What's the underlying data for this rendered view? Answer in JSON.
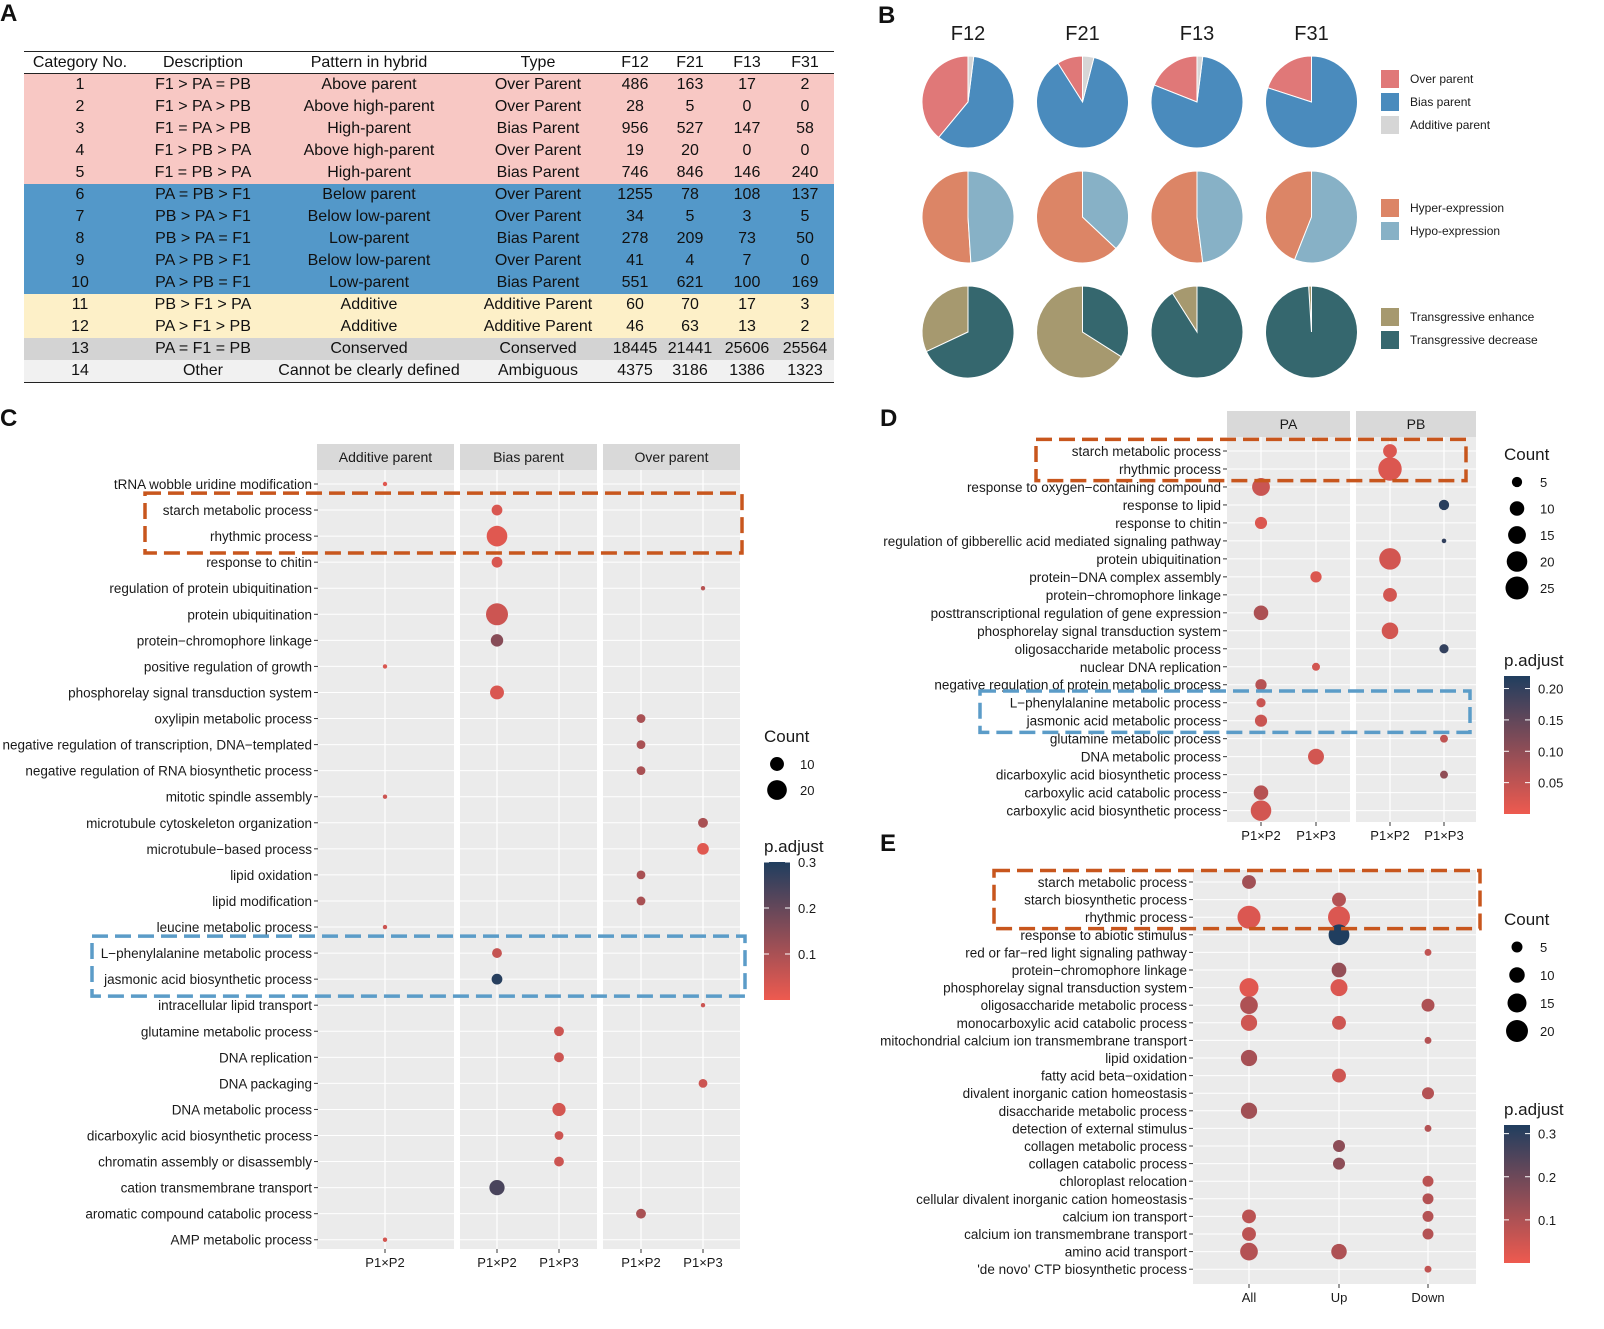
{
  "colors": {
    "over": "#e07878",
    "bias": "#4a8bbd",
    "additive": "#d6d6d6",
    "hyper": "#dc8566",
    "hypo": "#87b1c6",
    "tenhance": "#a6996f",
    "tdecrease": "#35676e",
    "grad_low": "#ee5a4f",
    "grad_high": "#203e5f",
    "panel_bg": "#ebebeb",
    "strip_bg": "#d9d9d9",
    "orange_box": "#c8561d",
    "blue_box": "#5b9cc8"
  },
  "panels": {
    "a": "A",
    "b": "B",
    "c": "C",
    "d": "D",
    "e": "E"
  },
  "table": {
    "headers": [
      "Category No.",
      "Description",
      "Pattern in hybrid",
      "Type",
      "F12",
      "F21",
      "F13",
      "F31"
    ],
    "rows": [
      {
        "g": "over",
        "cells": [
          "1",
          "F1 > PA = PB",
          "Above parent",
          "Over Parent",
          "486",
          "163",
          "17",
          "2"
        ]
      },
      {
        "g": "over",
        "cells": [
          "2",
          "F1 > PA > PB",
          "Above high-parent",
          "Over Parent",
          "28",
          "5",
          "0",
          "0"
        ]
      },
      {
        "g": "over",
        "cells": [
          "3",
          "F1 = PA > PB",
          "High-parent",
          "Bias Parent",
          "956",
          "527",
          "147",
          "58"
        ]
      },
      {
        "g": "over",
        "cells": [
          "4",
          "F1 > PB > PA",
          "Above high-parent",
          "Over Parent",
          "19",
          "20",
          "0",
          "0"
        ]
      },
      {
        "g": "over",
        "cells": [
          "5",
          "F1 = PB > PA",
          "High-parent",
          "Bias Parent",
          "746",
          "846",
          "146",
          "240"
        ]
      },
      {
        "g": "below",
        "cells": [
          "6",
          "PA = PB > F1",
          "Below parent",
          "Over Parent",
          "1255",
          "78",
          "108",
          "137"
        ]
      },
      {
        "g": "below",
        "cells": [
          "7",
          "PB > PA > F1",
          "Below low-parent",
          "Over Parent",
          "34",
          "5",
          "3",
          "5"
        ]
      },
      {
        "g": "below",
        "cells": [
          "8",
          "PB > PA = F1",
          "Low-parent",
          "Bias Parent",
          "278",
          "209",
          "73",
          "50"
        ]
      },
      {
        "g": "below",
        "cells": [
          "9",
          "PA > PB > F1",
          "Below low-parent",
          "Over Parent",
          "41",
          "4",
          "7",
          "0"
        ]
      },
      {
        "g": "below",
        "cells": [
          "10",
          "PA > PB = F1",
          "Low-parent",
          "Bias Parent",
          "551",
          "621",
          "100",
          "169"
        ]
      },
      {
        "g": "add",
        "cells": [
          "11",
          "PB > F1 > PA",
          "Additive",
          "Additive Parent",
          "60",
          "70",
          "17",
          "3"
        ]
      },
      {
        "g": "add",
        "cells": [
          "12",
          "PA > F1 > PB",
          "Additive",
          "Additive Parent",
          "46",
          "63",
          "13",
          "2"
        ]
      },
      {
        "g": "cons",
        "cells": [
          "13",
          "PA = F1 = PB",
          "Conserved",
          "Conserved",
          "18445",
          "21441",
          "25606",
          "25564"
        ]
      },
      {
        "g": "oth",
        "cells": [
          "14",
          "Other",
          "Cannot be clearly defined",
          "Ambiguous",
          "4375",
          "3186",
          "1386",
          "1323"
        ]
      }
    ]
  },
  "chart_data": [
    {
      "type": "pie",
      "panel": "B",
      "columns": [
        "F12",
        "F21",
        "F13",
        "F31"
      ],
      "rows": [
        {
          "legend": [
            {
              "label": "Over parent",
              "color": "over"
            },
            {
              "label": "Bias parent",
              "color": "bias"
            },
            {
              "label": "Additive parent",
              "color": "additive"
            }
          ],
          "slices": [
            [
              0.39,
              0.59,
              0.02
            ],
            [
              0.09,
              0.87,
              0.04
            ],
            [
              0.19,
              0.79,
              0.02
            ],
            [
              0.2,
              0.8,
              0.0
            ]
          ]
        },
        {
          "legend": [
            {
              "label": "Hyper-expression",
              "color": "hyper"
            },
            {
              "label": "Hypo-expression",
              "color": "hypo"
            }
          ],
          "slices": [
            [
              0.51,
              0.49
            ],
            [
              0.63,
              0.37
            ],
            [
              0.52,
              0.48
            ],
            [
              0.44,
              0.56
            ]
          ]
        },
        {
          "legend": [
            {
              "label": "Transgressive enhance",
              "color": "tenhance"
            },
            {
              "label": "Transgressive decrease",
              "color": "tdecrease"
            }
          ],
          "slices": [
            [
              0.32,
              0.68
            ],
            [
              0.66,
              0.34
            ],
            [
              0.09,
              0.91
            ],
            [
              0.01,
              0.99
            ]
          ]
        }
      ]
    },
    {
      "type": "scatter",
      "panel": "C",
      "facets": [
        {
          "label": "Additive parent",
          "x": [
            "P1×P2"
          ]
        },
        {
          "label": "Bias parent",
          "x": [
            "P1×P2",
            "P1×P3"
          ]
        },
        {
          "label": "Over parent",
          "x": [
            "P1×P2",
            "P1×P3"
          ]
        }
      ],
      "terms": [
        "tRNA wobble uridine modification",
        "starch metabolic process",
        "rhythmic process",
        "response to chitin",
        "regulation of protein ubiquitination",
        "protein ubiquitination",
        "protein−chromophore linkage",
        "positive regulation of growth",
        "phosphorelay signal transduction system",
        "oxylipin metabolic process",
        "negative regulation of transcription, DNA−templated",
        "negative regulation of RNA biosynthetic process",
        "mitotic spindle assembly",
        "microtubule cytoskeleton organization",
        "microtubule−based process",
        "lipid oxidation",
        "lipid modification",
        "leucine metabolic process",
        "L−phenylalanine metabolic process",
        "jasmonic acid biosynthetic process",
        "intracellular lipid transport",
        "glutamine metabolic process",
        "DNA replication",
        "DNA packaging",
        "DNA metabolic process",
        "dicarboxylic acid biosynthetic process",
        "chromatin assembly or disassembly",
        "cation transmembrane transport",
        "aromatic compound catabolic process",
        "AMP metabolic process"
      ],
      "points": [
        [
          0,
          0,
          0,
          1,
          0.02
        ],
        [
          1,
          1,
          0,
          6,
          0.03
        ],
        [
          2,
          1,
          0,
          22,
          0.02
        ],
        [
          3,
          1,
          0,
          6,
          0.03
        ],
        [
          4,
          2,
          1,
          1,
          0.08
        ],
        [
          5,
          1,
          0,
          25,
          0.05
        ],
        [
          6,
          1,
          0,
          8,
          0.15
        ],
        [
          7,
          0,
          0,
          1,
          0.03
        ],
        [
          8,
          1,
          0,
          10,
          0.03
        ],
        [
          9,
          2,
          0,
          4,
          0.1
        ],
        [
          10,
          2,
          0,
          4,
          0.1
        ],
        [
          11,
          2,
          0,
          4,
          0.1
        ],
        [
          12,
          0,
          0,
          1,
          0.05
        ],
        [
          13,
          2,
          1,
          5,
          0.1
        ],
        [
          14,
          2,
          1,
          7,
          0.02
        ],
        [
          15,
          2,
          0,
          4,
          0.1
        ],
        [
          16,
          2,
          0,
          4,
          0.1
        ],
        [
          17,
          0,
          0,
          1,
          0.05
        ],
        [
          18,
          1,
          0,
          5,
          0.06
        ],
        [
          19,
          1,
          0,
          6,
          0.29
        ],
        [
          20,
          2,
          1,
          1,
          0.05
        ],
        [
          21,
          1,
          1,
          5,
          0.05
        ],
        [
          22,
          1,
          1,
          5,
          0.05
        ],
        [
          23,
          2,
          1,
          4,
          0.05
        ],
        [
          24,
          1,
          1,
          9,
          0.04
        ],
        [
          25,
          1,
          1,
          4,
          0.05
        ],
        [
          26,
          1,
          1,
          5,
          0.05
        ],
        [
          27,
          1,
          0,
          12,
          0.24
        ],
        [
          28,
          2,
          0,
          5,
          0.1
        ],
        [
          29,
          0,
          0,
          1,
          0.04
        ]
      ],
      "size_legend": {
        "title": "Count",
        "values": [
          10,
          20
        ]
      },
      "color_legend": {
        "title": "p.adjust",
        "ticks": [
          0.3,
          0.2,
          0.1
        ],
        "range": [
          0.0,
          0.3
        ]
      },
      "highlights": {
        "orange": [
          1,
          2
        ],
        "blue": [
          18,
          19
        ]
      }
    },
    {
      "type": "scatter",
      "panel": "D",
      "facets": [
        {
          "label": "PA",
          "x": [
            "P1×P2",
            "P1×P3"
          ]
        },
        {
          "label": "PB",
          "x": [
            "P1×P2",
            "P1×P3"
          ]
        }
      ],
      "terms": [
        "starch metabolic process",
        "rhythmic process",
        "response to oxygen−containing compound",
        "response to lipid",
        "response to chitin",
        "regulation of gibberellic acid mediated signaling pathway",
        "protein ubiquitination",
        "protein−DNA complex assembly",
        "protein−chromophore linkage",
        "posttranscriptional regulation of gene expression",
        "phosphorelay signal transduction system",
        "oligosaccharide metabolic process",
        "nuclear DNA replication",
        "negative regulation of protein metabolic process",
        "L−phenylalanine metabolic process",
        "jasmonic acid metabolic process",
        "glutamine metabolic process",
        "DNA metabolic process",
        "dicarboxylic acid biosynthetic process",
        "carboxylic acid catabolic process",
        "carboxylic acid biosynthetic process"
      ],
      "points": [
        [
          0,
          1,
          0,
          9,
          0.02
        ],
        [
          1,
          1,
          0,
          26,
          0.02
        ],
        [
          2,
          0,
          0,
          15,
          0.04
        ],
        [
          3,
          1,
          1,
          5,
          0.21
        ],
        [
          4,
          0,
          0,
          7,
          0.02
        ],
        [
          5,
          1,
          1,
          1,
          0.2
        ],
        [
          6,
          1,
          0,
          22,
          0.03
        ],
        [
          7,
          0,
          1,
          6,
          0.02
        ],
        [
          8,
          1,
          0,
          9,
          0.03
        ],
        [
          9,
          0,
          0,
          10,
          0.07
        ],
        [
          10,
          1,
          0,
          13,
          0.03
        ],
        [
          11,
          1,
          1,
          4,
          0.2
        ],
        [
          12,
          0,
          1,
          3,
          0.03
        ],
        [
          13,
          0,
          0,
          6,
          0.06
        ],
        [
          14,
          0,
          0,
          4,
          0.04
        ],
        [
          15,
          0,
          0,
          7,
          0.04
        ],
        [
          16,
          1,
          1,
          3,
          0.05
        ],
        [
          17,
          0,
          1,
          12,
          0.03
        ],
        [
          18,
          1,
          1,
          3,
          0.1
        ],
        [
          19,
          0,
          0,
          10,
          0.06
        ],
        [
          20,
          0,
          0,
          20,
          0.03
        ]
      ],
      "size_legend": {
        "title": "Count",
        "values": [
          5,
          10,
          15,
          20,
          25
        ]
      },
      "color_legend": {
        "title": "p.adjust",
        "ticks": [
          0.2,
          0.15,
          0.1,
          0.05
        ],
        "range": [
          0.0,
          0.22
        ]
      },
      "highlights": {
        "orange": [
          0,
          1
        ],
        "blue": [
          14,
          15
        ]
      }
    },
    {
      "type": "scatter",
      "panel": "E",
      "x": [
        "All",
        "Up",
        "Down"
      ],
      "terms": [
        "starch metabolic process",
        "starch biosynthetic process",
        "rhythmic process",
        "response to abiotic stimulus",
        "red or far−red light signaling pathway",
        "protein−chromophore linkage",
        "phosphorelay signal transduction system",
        "oligosaccharide metabolic process",
        "monocarboxylic acid catabolic process",
        "mitochondrial calcium ion transmembrane transport",
        "lipid oxidation",
        "fatty acid beta−oxidation",
        "divalent inorganic cation homeostasis",
        "disaccharide metabolic process",
        "detection of external stimulus",
        "collagen metabolic process",
        "collagen catabolic process",
        "chloroplast relocation",
        "cellular divalent inorganic cation homeostasis",
        "calcium ion transport",
        "calcium ion transmembrane transport",
        "amino acid transport",
        "'de novo' CTP biosynthetic process"
      ],
      "points": [
        [
          0,
          0,
          8,
          0.12
        ],
        [
          1,
          1,
          8,
          0.09
        ],
        [
          2,
          0,
          22,
          0.03
        ],
        [
          2,
          1,
          20,
          0.03
        ],
        [
          3,
          1,
          18,
          0.32
        ],
        [
          4,
          2,
          2,
          0.07
        ],
        [
          5,
          1,
          9,
          0.14
        ],
        [
          6,
          0,
          15,
          0.02
        ],
        [
          6,
          1,
          12,
          0.03
        ],
        [
          7,
          0,
          13,
          0.1
        ],
        [
          7,
          2,
          7,
          0.1
        ],
        [
          8,
          0,
          11,
          0.05
        ],
        [
          8,
          1,
          8,
          0.05
        ],
        [
          9,
          2,
          2,
          0.09
        ],
        [
          10,
          0,
          11,
          0.11
        ],
        [
          11,
          1,
          8,
          0.05
        ],
        [
          12,
          2,
          6,
          0.09
        ],
        [
          13,
          0,
          11,
          0.12
        ],
        [
          14,
          2,
          2,
          0.09
        ],
        [
          15,
          1,
          6,
          0.15
        ],
        [
          16,
          1,
          6,
          0.15
        ],
        [
          17,
          2,
          5,
          0.08
        ],
        [
          18,
          2,
          5,
          0.09
        ],
        [
          19,
          0,
          8,
          0.08
        ],
        [
          19,
          2,
          5,
          0.09
        ],
        [
          20,
          0,
          8,
          0.08
        ],
        [
          20,
          2,
          5,
          0.09
        ],
        [
          21,
          0,
          13,
          0.09
        ],
        [
          21,
          1,
          10,
          0.1
        ],
        [
          22,
          2,
          2,
          0.07
        ]
      ],
      "size_legend": {
        "title": "Count",
        "values": [
          5,
          10,
          15,
          20
        ]
      },
      "color_legend": {
        "title": "p.adjust",
        "ticks": [
          0.3,
          0.2,
          0.1
        ],
        "range": [
          0.0,
          0.32
        ]
      },
      "highlights": {
        "orange": [
          0,
          2
        ]
      }
    }
  ]
}
